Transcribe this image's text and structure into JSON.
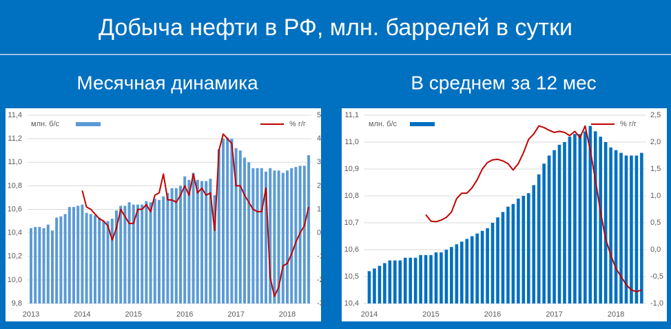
{
  "title": "Добыча нефти в РФ, млн. баррелей в сутки",
  "chart_data": [
    {
      "type": "combo",
      "title": "Месячная динамика",
      "grid": true,
      "categories": [
        "2013",
        null,
        null,
        null,
        null,
        null,
        null,
        null,
        null,
        null,
        null,
        null,
        "2014",
        null,
        null,
        null,
        null,
        null,
        null,
        null,
        null,
        null,
        null,
        null,
        "2015",
        null,
        null,
        null,
        null,
        null,
        null,
        null,
        null,
        null,
        null,
        null,
        "2016",
        null,
        null,
        null,
        null,
        null,
        null,
        null,
        null,
        null,
        null,
        null,
        "2017",
        null,
        null,
        null,
        null,
        null,
        null,
        null,
        null,
        null,
        null,
        null,
        "2018",
        null,
        null,
        null,
        null,
        null
      ],
      "ylim": [
        9.8,
        11.4
      ],
      "yticks": [
        {
          "value": 9.8,
          "label": "9,8"
        },
        {
          "value": 10.0,
          "label": "10,0"
        },
        {
          "value": 10.2,
          "label": "10,2"
        },
        {
          "value": 10.4,
          "label": "10,4"
        },
        {
          "value": 10.6,
          "label": "10,6"
        },
        {
          "value": 10.8,
          "label": "10,8"
        },
        {
          "value": 11.0,
          "label": "11,0"
        },
        {
          "value": 11.2,
          "label": "11,2"
        },
        {
          "value": 11.4,
          "label": "11,4"
        }
      ],
      "y2lim": [
        -3,
        5
      ],
      "y2ticks": [
        -3,
        -2,
        -1,
        0,
        1,
        2,
        3,
        4,
        5
      ],
      "series": [
        {
          "name": "млн. б/с",
          "type": "bar",
          "color": "#5b9bd5",
          "values": [
            10.44,
            10.45,
            10.45,
            10.44,
            10.47,
            10.42,
            10.53,
            10.54,
            10.56,
            10.62,
            10.62,
            10.63,
            10.64,
            10.57,
            10.56,
            10.55,
            10.53,
            10.5,
            10.5,
            10.52,
            10.59,
            10.63,
            10.63,
            10.66,
            10.64,
            10.64,
            10.64,
            10.67,
            10.66,
            10.69,
            10.68,
            10.71,
            10.74,
            10.78,
            10.78,
            10.8,
            10.88,
            10.85,
            10.91,
            10.85,
            10.84,
            10.84,
            10.86,
            10.72,
            11.11,
            11.2,
            11.21,
            11.2,
            11.12,
            11.1,
            11.04,
            11.0,
            10.95,
            10.95,
            10.95,
            10.92,
            10.95,
            10.93,
            10.93,
            10.91,
            10.93,
            10.95,
            10.96,
            10.97,
            10.97,
            11.06
          ]
        },
        {
          "name": "% г/г",
          "type": "line",
          "axis": "y2",
          "color": "#c00000",
          "values": [
            null,
            null,
            null,
            null,
            null,
            null,
            null,
            null,
            null,
            null,
            null,
            null,
            1.8,
            1.1,
            1.0,
            0.8,
            0.6,
            0.5,
            0.3,
            -0.3,
            0.2,
            1.0,
            0.7,
            0.4,
            0.4,
            1.0,
            1.0,
            1.2,
            0.9,
            1.6,
            1.7,
            2.5,
            1.4,
            1.4,
            1.3,
            1.6,
            2.0,
            1.6,
            2.5,
            1.7,
            1.9,
            1.6,
            1.7,
            0.1,
            3.5,
            4.2,
            4.0,
            3.8,
            2.0,
            2.0,
            1.6,
            1.3,
            1.0,
            0.9,
            0.9,
            1.9,
            -1.9,
            -2.7,
            -2.3,
            -1.4,
            -1.3,
            -0.9,
            -0.4,
            0.0,
            0.3,
            1.1
          ]
        }
      ]
    },
    {
      "type": "combo",
      "title": "В среднем за 12 мес",
      "grid": true,
      "categories": [
        "2014",
        null,
        null,
        null,
        null,
        null,
        null,
        null,
        null,
        null,
        null,
        null,
        "2015",
        null,
        null,
        null,
        null,
        null,
        null,
        null,
        null,
        null,
        null,
        null,
        "2016",
        null,
        null,
        null,
        null,
        null,
        null,
        null,
        null,
        null,
        null,
        null,
        "2017",
        null,
        null,
        null,
        null,
        null,
        null,
        null,
        null,
        null,
        null,
        null,
        "2018",
        null,
        null,
        null,
        null,
        null
      ],
      "ylim": [
        10.4,
        11.1
      ],
      "yticks": [
        {
          "value": 10.4,
          "label": "10,4"
        },
        {
          "value": 10.5,
          "label": "10,5"
        },
        {
          "value": 10.6,
          "label": "10,6"
        },
        {
          "value": 10.7,
          "label": "10,7"
        },
        {
          "value": 10.8,
          "label": "10,8"
        },
        {
          "value": 10.9,
          "label": "10,9"
        },
        {
          "value": 11.0,
          "label": "11,0"
        },
        {
          "value": 11.1,
          "label": "11,1"
        }
      ],
      "y2lim": [
        -1.0,
        2.5
      ],
      "y2ticks": [
        {
          "value": -1.0,
          "label": "-1,0"
        },
        {
          "value": -0.5,
          "label": "-0,5"
        },
        {
          "value": 0.0,
          "label": "0,0"
        },
        {
          "value": 0.5,
          "label": "0,5"
        },
        {
          "value": 1.0,
          "label": "1,0"
        },
        {
          "value": 1.5,
          "label": "1,5"
        },
        {
          "value": 2.0,
          "label": "2,0"
        },
        {
          "value": 2.5,
          "label": "2,5"
        }
      ],
      "series": [
        {
          "name": "млн. б/с",
          "type": "bar",
          "color": "#0070c0",
          "values": [
            10.52,
            10.53,
            10.54,
            10.55,
            10.56,
            10.56,
            10.56,
            10.57,
            10.57,
            10.57,
            10.58,
            10.58,
            10.58,
            10.59,
            10.59,
            10.6,
            10.61,
            10.62,
            10.63,
            10.64,
            10.65,
            10.66,
            10.67,
            10.68,
            10.7,
            10.72,
            10.74,
            10.76,
            10.77,
            10.79,
            10.8,
            10.81,
            10.84,
            10.88,
            10.92,
            10.95,
            10.97,
            10.99,
            11.0,
            11.02,
            11.03,
            11.03,
            11.04,
            11.06,
            11.04,
            11.02,
            11.0,
            10.98,
            10.97,
            10.96,
            10.95,
            10.95,
            10.95,
            10.96
          ]
        },
        {
          "name": "% г/г",
          "type": "line",
          "axis": "y2",
          "color": "#c00000",
          "values": [
            null,
            null,
            null,
            null,
            null,
            null,
            null,
            null,
            null,
            null,
            null,
            0.65,
            0.53,
            0.52,
            0.55,
            0.6,
            0.7,
            0.95,
            1.05,
            1.05,
            1.15,
            1.3,
            1.5,
            1.62,
            1.67,
            1.68,
            1.65,
            1.6,
            1.48,
            1.6,
            1.8,
            2.05,
            2.15,
            2.3,
            2.27,
            2.22,
            2.18,
            2.2,
            2.18,
            2.12,
            2.2,
            2.08,
            2.3,
            1.85,
            1.3,
            0.7,
            0.2,
            -0.1,
            -0.35,
            -0.5,
            -0.65,
            -0.75,
            -0.78,
            -0.75
          ]
        }
      ]
    }
  ]
}
